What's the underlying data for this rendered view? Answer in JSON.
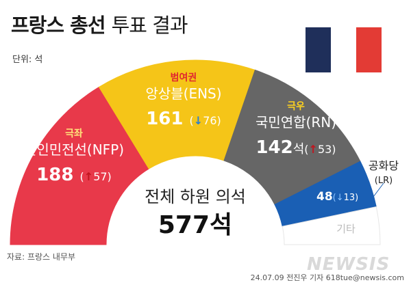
{
  "header": {
    "title_bold": "프랑스 총선",
    "title_light": "투표 결과",
    "unit": "단위: 석"
  },
  "flag_colors": [
    "#1f2f5a",
    "#ffffff",
    "#e33b35"
  ],
  "center": {
    "label": "전체 하원 의석",
    "total": "577석"
  },
  "chart_data": {
    "type": "pie",
    "subtype": "half-donut",
    "title": "프랑스 총선 투표 결과",
    "unit": "석",
    "total": 577,
    "series": [
      {
        "group": "극좌",
        "name": "신인민전선(NFP)",
        "value": 188,
        "change": 57,
        "direction": "up",
        "color": "#e8394a"
      },
      {
        "group": "범여권",
        "name": "앙상블(ENS)",
        "value": 161,
        "change": 76,
        "direction": "down",
        "color": "#f5c518"
      },
      {
        "group": "극우",
        "name": "국민연합(RN)",
        "value": 142,
        "change": 53,
        "direction": "up",
        "color": "#666666"
      },
      {
        "group": "",
        "name": "공화당(LR)",
        "value": 48,
        "change": 13,
        "direction": "down",
        "color": "#1a5fb4"
      },
      {
        "group": "",
        "name": "기타",
        "value": 38,
        "change": null,
        "direction": null,
        "color": "#ffffff"
      }
    ]
  },
  "footer": {
    "source": "자료: 프랑스 내무부",
    "credit": "24.07.09 전진우 기자 618tue@newsis.com",
    "logo": "NEWSIS"
  }
}
